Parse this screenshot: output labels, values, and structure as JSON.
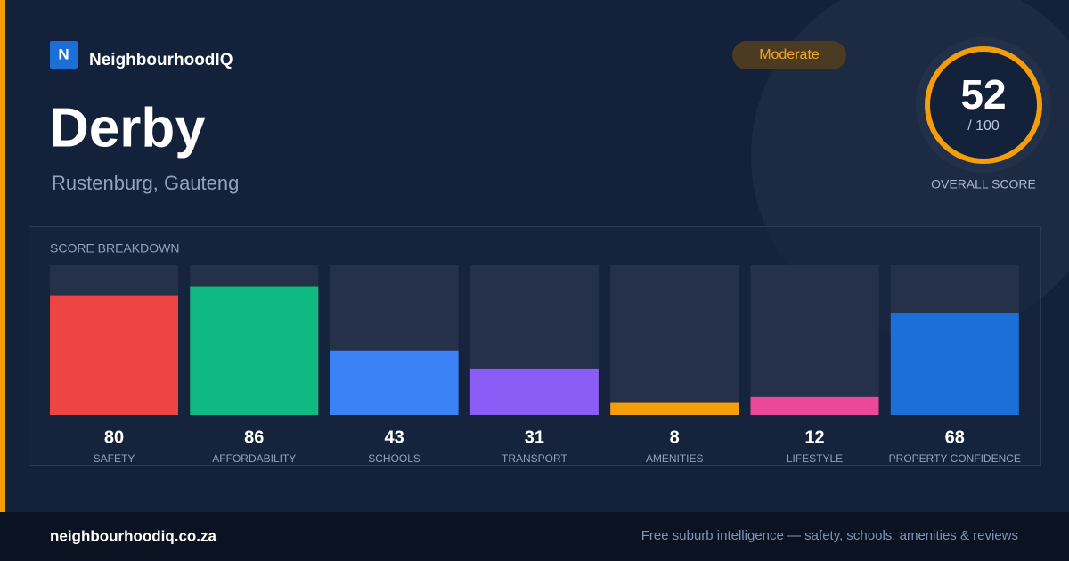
{
  "brand": {
    "logo_letter": "N",
    "name": "NeighbourhoodIQ"
  },
  "header": {
    "title": "Derby",
    "subtitle": "Rustenburg, Gauteng",
    "badge": "Moderate"
  },
  "score": {
    "value": 52,
    "max_label": "/ 100",
    "label": "OVERALL SCORE"
  },
  "chart_data": {
    "type": "bar",
    "title": "SCORE BREAKDOWN",
    "categories": [
      "SAFETY",
      "AFFORDABILITY",
      "SCHOOLS",
      "TRANSPORT",
      "AMENITIES",
      "LIFESTYLE",
      "PROPERTY CONFIDENCE"
    ],
    "values": [
      80,
      86,
      43,
      31,
      8,
      12,
      68
    ],
    "colors": [
      "#ef4444",
      "#10b981",
      "#3b82f6",
      "#8b5cf6",
      "#f59e0b",
      "#ec4899",
      "#1d6fd8"
    ],
    "ylim": [
      0,
      100
    ]
  },
  "footer": {
    "site": "neighbourhoodiq.co.za",
    "tagline": "Free suburb intelligence — safety, schools, amenities & reviews"
  }
}
